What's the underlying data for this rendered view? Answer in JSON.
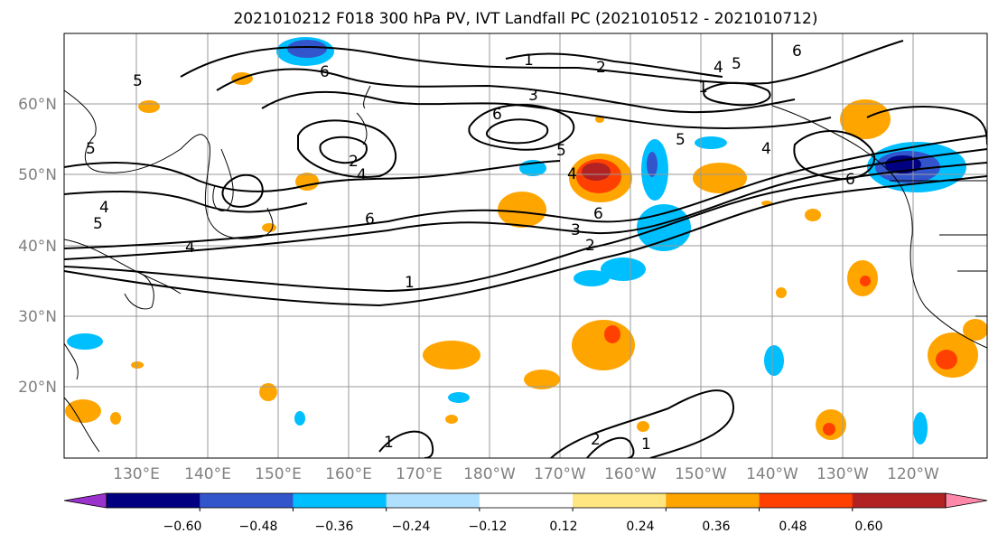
{
  "title": "2021010212 F018 300 hPa PV, IVT Landfall PC (2021010512 - 2021010712)",
  "map": {
    "lon_labels": [
      "130°E",
      "140°E",
      "150°E",
      "160°E",
      "170°E",
      "180°W",
      "170°W",
      "160°W",
      "150°W",
      "140°W",
      "130°W",
      "120°W"
    ],
    "lat_labels": [
      "60°N",
      "50°N",
      "40°N",
      "30°N",
      "20°N"
    ],
    "contour_labels": [
      "1",
      "2",
      "3",
      "4",
      "5",
      "6"
    ]
  },
  "colorbar": {
    "tick_labels": [
      "−0.60",
      "−0.48",
      "−0.36",
      "−0.24",
      "−0.12",
      "0.12",
      "0.24",
      "0.36",
      "0.48",
      "0.60"
    ],
    "colors": [
      "#9933cc",
      "#000080",
      "#3355cc",
      "#00bfff",
      "#b0e0ff",
      "#ffffff",
      "#ffe680",
      "#ffa500",
      "#ff4000",
      "#b22222",
      "#ff88aa"
    ]
  }
}
